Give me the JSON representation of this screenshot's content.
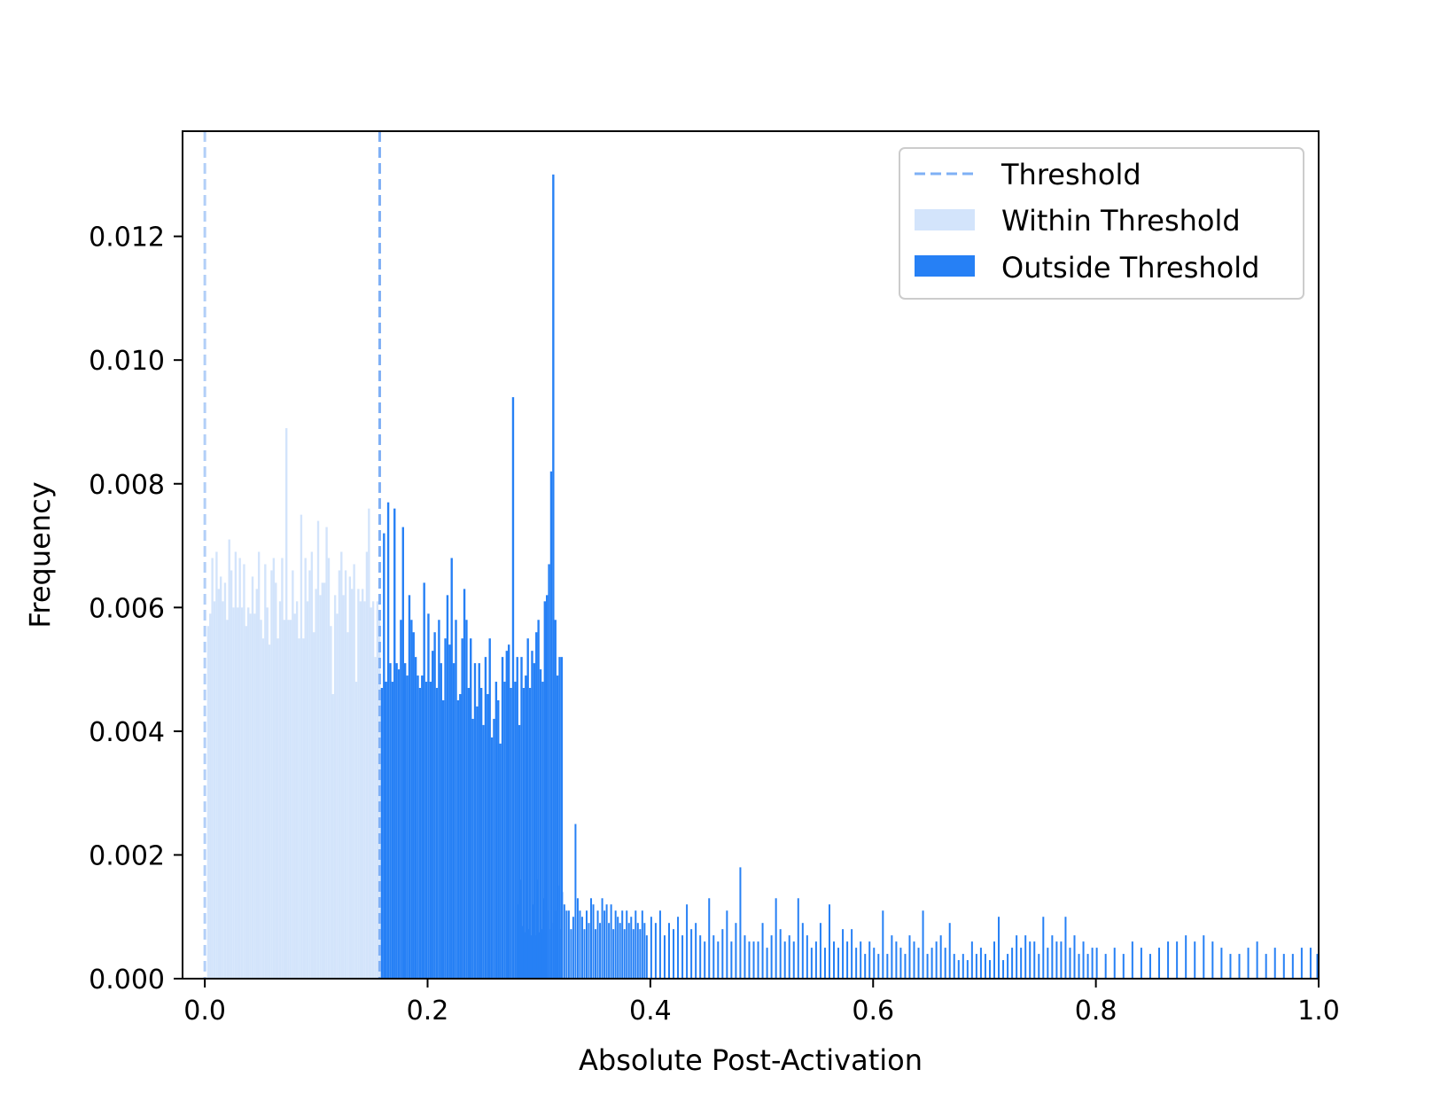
{
  "chart_data": {
    "type": "histogram",
    "title": "",
    "xlabel": "Absolute Post-Activation",
    "ylabel": "Frequency",
    "xlim": [
      -0.02,
      1.0
    ],
    "ylim": [
      0,
      0.0137
    ],
    "xticks": [
      0.0,
      0.2,
      0.4,
      0.6,
      0.8,
      1.0
    ],
    "xtick_labels": [
      "0.0",
      "0.2",
      "0.4",
      "0.6",
      "0.8",
      "1.0"
    ],
    "yticks": [
      0.0,
      0.002,
      0.004,
      0.006,
      0.008,
      0.01,
      0.012
    ],
    "ytick_labels": [
      "0.000",
      "0.002",
      "0.004",
      "0.006",
      "0.008",
      "0.010",
      "0.012"
    ],
    "grid": false,
    "legend_position": "top-right",
    "thresholds": [
      0.0,
      0.157
    ],
    "colors": {
      "threshold": "#7fb0f5",
      "within": "#d3e4fb",
      "outside": "#2680f5"
    },
    "legend": [
      {
        "label": "Threshold",
        "kind": "dashed-line",
        "color": "#7fb0f5"
      },
      {
        "label": "Within Threshold",
        "kind": "patch",
        "color": "#d3e4fb"
      },
      {
        "label": "Outside Threshold",
        "kind": "patch",
        "color": "#2680f5"
      }
    ],
    "series": [
      {
        "name": "Within Threshold",
        "x_start": 0.002,
        "bin_width": 0.0019,
        "values": [
          0.0057,
          0.0059,
          0.0068,
          0.0061,
          0.0069,
          0.0063,
          0.0065,
          0.0061,
          0.0064,
          0.0058,
          0.0071,
          0.0066,
          0.006,
          0.0069,
          0.006,
          0.0068,
          0.006,
          0.0067,
          0.0057,
          0.006,
          0.0059,
          0.0065,
          0.0059,
          0.0063,
          0.0069,
          0.0058,
          0.0055,
          0.0067,
          0.006,
          0.0054,
          0.0066,
          0.0068,
          0.0064,
          0.0055,
          0.0061,
          0.0068,
          0.0058,
          0.0089,
          0.0058,
          0.0058,
          0.0066,
          0.0059,
          0.0061,
          0.0055,
          0.0075,
          0.0055,
          0.0068,
          0.0061,
          0.0066,
          0.0069,
          0.0056,
          0.0063,
          0.0074,
          0.0062,
          0.0064,
          0.0064,
          0.0073,
          0.0068,
          0.0057,
          0.0046,
          0.0062,
          0.0059,
          0.0066,
          0.0069,
          0.0062,
          0.0066,
          0.0056,
          0.0065,
          0.0063,
          0.0067,
          0.0048,
          0.0063,
          0.0061,
          0.0063,
          0.0061,
          0.0069,
          0.0076,
          0.006,
          0.0061,
          0.0052,
          0.0061,
          0.0058
        ]
      },
      {
        "name": "Outside Threshold",
        "x_start": 0.158,
        "bin_width": 0.0019,
        "values": [
          0.0047,
          0.0072,
          0.0048,
          0.0077,
          0.0051,
          0.0048,
          0.0076,
          0.0051,
          0.005,
          0.0058,
          0.0073,
          0.0051,
          0.0049,
          0.0062,
          0.0058,
          0.0056,
          0.0052,
          0.0049,
          0.0047,
          0.0049,
          0.0064,
          0.0048,
          0.0059,
          0.0048,
          0.0053,
          0.0056,
          0.0047,
          0.0058,
          0.0051,
          0.0045,
          0.0055,
          0.0062,
          0.0054,
          0.0068,
          0.0051,
          0.0058,
          0.0045,
          0.0046,
          0.0055,
          0.0063,
          0.0058,
          0.0047,
          0.0055,
          0.0042,
          0.0051,
          0.0044,
          0.0051,
          0.0047,
          0.0041,
          0.0052,
          0.0046,
          0.0055,
          0.0039,
          0.0042,
          0.0048,
          0.0045,
          0.0038,
          0.0052,
          0.0048,
          0.0053,
          0.0054,
          0.0047,
          0.0094,
          0.0048,
          0.0052,
          0.0041,
          0.0052,
          0.0047,
          0.0049,
          0.0055,
          0.0047,
          0.0053,
          0.0051,
          0.0056,
          0.0058,
          0.005,
          0.0048,
          0.0061,
          0.0062,
          0.0067,
          0.0082,
          0.013,
          0.0058,
          0.0049,
          0.0052,
          0.0052
        ]
      },
      {
        "name": "Outside Threshold (tail)",
        "bins": [
          [
            0.28,
            0.0012
          ],
          [
            0.282,
            0.0016
          ],
          [
            0.284,
            0.00085
          ],
          [
            0.286,
            0.00075
          ],
          [
            0.288,
            0.0016
          ],
          [
            0.29,
            0.0008
          ],
          [
            0.292,
            0.0007
          ],
          [
            0.294,
            0.0012
          ],
          [
            0.296,
            0.0007
          ],
          [
            0.298,
            0.0016
          ],
          [
            0.3,
            0.00075
          ],
          [
            0.302,
            0.0008
          ],
          [
            0.304,
            0.0013
          ],
          [
            0.306,
            0.00075
          ],
          [
            0.308,
            0.0011
          ],
          [
            0.31,
            0.0008
          ],
          [
            0.312,
            0.0009
          ],
          [
            0.314,
            0.0011
          ],
          [
            0.316,
            0.0015
          ],
          [
            0.318,
            0.0008
          ],
          [
            0.32,
            0.0014
          ],
          [
            0.322,
            0.0012
          ],
          [
            0.324,
            0.0011
          ],
          [
            0.326,
            0.0011
          ],
          [
            0.328,
            0.0008
          ],
          [
            0.33,
            0.001
          ],
          [
            0.332,
            0.0025
          ],
          [
            0.334,
            0.0013
          ],
          [
            0.336,
            0.0011
          ],
          [
            0.338,
            0.001
          ],
          [
            0.34,
            0.0008
          ],
          [
            0.342,
            0.0011
          ],
          [
            0.344,
            0.0009
          ],
          [
            0.346,
            0.0013
          ],
          [
            0.348,
            0.0012
          ],
          [
            0.35,
            0.0008
          ],
          [
            0.352,
            0.0011
          ],
          [
            0.354,
            0.0009
          ],
          [
            0.356,
            0.0013
          ],
          [
            0.358,
            0.0011
          ],
          [
            0.36,
            0.0012
          ],
          [
            0.362,
            0.0009
          ],
          [
            0.364,
            0.0012
          ],
          [
            0.366,
            0.0008
          ],
          [
            0.368,
            0.0011
          ],
          [
            0.37,
            0.001
          ],
          [
            0.372,
            0.0009
          ],
          [
            0.374,
            0.0011
          ],
          [
            0.376,
            0.0008
          ],
          [
            0.378,
            0.0011
          ],
          [
            0.38,
            0.0009
          ],
          [
            0.382,
            0.001
          ],
          [
            0.384,
            0.0008
          ],
          [
            0.386,
            0.0011
          ],
          [
            0.388,
            0.0009
          ],
          [
            0.39,
            0.0008
          ],
          [
            0.392,
            0.0011
          ],
          [
            0.394,
            0.0009
          ],
          [
            0.396,
            0.0007
          ],
          [
            0.4,
            0.001
          ],
          [
            0.404,
            0.0009
          ],
          [
            0.408,
            0.0011
          ],
          [
            0.412,
            0.0007
          ],
          [
            0.416,
            0.0009
          ],
          [
            0.42,
            0.0008
          ],
          [
            0.424,
            0.001
          ],
          [
            0.428,
            0.0007
          ],
          [
            0.432,
            0.0012
          ],
          [
            0.436,
            0.0008
          ],
          [
            0.44,
            0.0009
          ],
          [
            0.444,
            0.0007
          ],
          [
            0.448,
            0.0006
          ],
          [
            0.452,
            0.0013
          ],
          [
            0.456,
            0.0007
          ],
          [
            0.46,
            0.0006
          ],
          [
            0.464,
            0.0008
          ],
          [
            0.468,
            0.0011
          ],
          [
            0.472,
            0.0006
          ],
          [
            0.476,
            0.0009
          ],
          [
            0.48,
            0.0018
          ],
          [
            0.484,
            0.0007
          ],
          [
            0.488,
            0.0006
          ],
          [
            0.492,
            0.0006
          ],
          [
            0.496,
            0.0006
          ],
          [
            0.5,
            0.0009
          ],
          [
            0.504,
            0.0005
          ],
          [
            0.508,
            0.0007
          ],
          [
            0.512,
            0.0013
          ],
          [
            0.516,
            0.0008
          ],
          [
            0.52,
            0.0006
          ],
          [
            0.524,
            0.0007
          ],
          [
            0.528,
            0.0006
          ],
          [
            0.532,
            0.0013
          ],
          [
            0.536,
            0.0009
          ],
          [
            0.54,
            0.0007
          ],
          [
            0.544,
            0.0005
          ],
          [
            0.548,
            0.0006
          ],
          [
            0.552,
            0.0009
          ],
          [
            0.556,
            0.0005
          ],
          [
            0.56,
            0.0012
          ],
          [
            0.564,
            0.0006
          ],
          [
            0.568,
            0.0005
          ],
          [
            0.572,
            0.0008
          ],
          [
            0.576,
            0.0006
          ],
          [
            0.58,
            0.0008
          ],
          [
            0.584,
            0.0005
          ],
          [
            0.588,
            0.0006
          ],
          [
            0.592,
            0.0004
          ],
          [
            0.596,
            0.0006
          ],
          [
            0.6,
            0.0005
          ],
          [
            0.604,
            0.0004
          ],
          [
            0.608,
            0.0011
          ],
          [
            0.612,
            0.0004
          ],
          [
            0.616,
            0.0007
          ],
          [
            0.62,
            0.0006
          ],
          [
            0.624,
            0.0005
          ],
          [
            0.628,
            0.0004
          ],
          [
            0.632,
            0.0007
          ],
          [
            0.636,
            0.0006
          ],
          [
            0.64,
            0.0005
          ],
          [
            0.644,
            0.0011
          ],
          [
            0.648,
            0.0004
          ],
          [
            0.652,
            0.0005
          ],
          [
            0.656,
            0.0006
          ],
          [
            0.66,
            0.0007
          ],
          [
            0.664,
            0.0005
          ],
          [
            0.668,
            0.0009
          ],
          [
            0.672,
            0.0004
          ],
          [
            0.676,
            0.0003
          ],
          [
            0.68,
            0.0004
          ],
          [
            0.684,
            0.0003
          ],
          [
            0.688,
            0.0006
          ],
          [
            0.692,
            0.0004
          ],
          [
            0.696,
            0.0005
          ],
          [
            0.7,
            0.0004
          ],
          [
            0.704,
            0.0003
          ],
          [
            0.708,
            0.0006
          ],
          [
            0.712,
            0.001
          ],
          [
            0.716,
            0.0003
          ],
          [
            0.72,
            0.0004
          ],
          [
            0.724,
            0.0005
          ],
          [
            0.728,
            0.0007
          ],
          [
            0.732,
            0.0005
          ],
          [
            0.736,
            0.0007
          ],
          [
            0.74,
            0.0006
          ],
          [
            0.744,
            0.0006
          ],
          [
            0.748,
            0.0004
          ],
          [
            0.752,
            0.001
          ],
          [
            0.756,
            0.0005
          ],
          [
            0.76,
            0.0007
          ],
          [
            0.764,
            0.0006
          ],
          [
            0.768,
            0.0006
          ],
          [
            0.772,
            0.001
          ],
          [
            0.776,
            0.0005
          ],
          [
            0.78,
            0.0007
          ],
          [
            0.784,
            0.0004
          ],
          [
            0.788,
            0.0006
          ],
          [
            0.792,
            0.0004
          ],
          [
            0.796,
            0.0005
          ],
          [
            0.8,
            0.0005
          ],
          [
            0.808,
            0.0004
          ],
          [
            0.816,
            0.0005
          ],
          [
            0.824,
            0.0004
          ],
          [
            0.832,
            0.0006
          ],
          [
            0.84,
            0.0005
          ],
          [
            0.848,
            0.0004
          ],
          [
            0.856,
            0.0005
          ],
          [
            0.864,
            0.0006
          ],
          [
            0.872,
            0.0006
          ],
          [
            0.88,
            0.0007
          ],
          [
            0.888,
            0.0006
          ],
          [
            0.896,
            0.0007
          ],
          [
            0.904,
            0.0006
          ],
          [
            0.912,
            0.0005
          ],
          [
            0.92,
            0.0004
          ],
          [
            0.928,
            0.0004
          ],
          [
            0.936,
            0.0005
          ],
          [
            0.944,
            0.0006
          ],
          [
            0.952,
            0.0004
          ],
          [
            0.96,
            0.0005
          ],
          [
            0.968,
            0.0004
          ],
          [
            0.976,
            0.0004
          ],
          [
            0.984,
            0.0005
          ],
          [
            0.992,
            0.0005
          ],
          [
            0.998,
            0.0004
          ]
        ]
      }
    ]
  }
}
